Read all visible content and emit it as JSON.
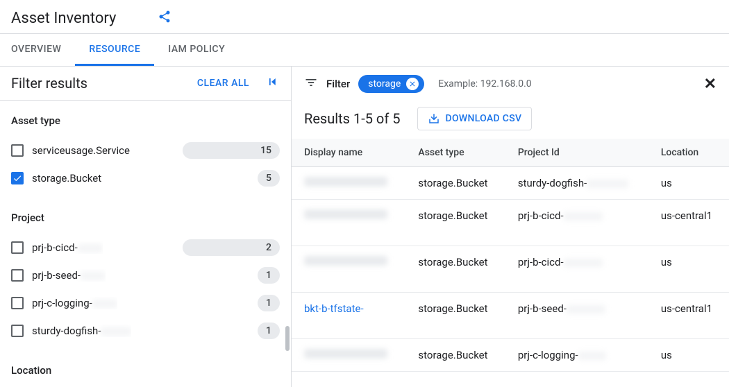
{
  "header": {
    "title": "Asset Inventory"
  },
  "tabs": {
    "overview": "OVERVIEW",
    "resource": "RESOURCE",
    "iam": "IAM POLICY",
    "active": "resource"
  },
  "sidebar": {
    "title": "Filter results",
    "clear_all": "CLEAR ALL",
    "sections": {
      "asset_type": {
        "heading": "Asset type",
        "items": [
          {
            "label": "serviceusage.Service",
            "count": "15",
            "checked": false,
            "wide": true
          },
          {
            "label": "storage.Bucket",
            "count": "5",
            "checked": true,
            "wide": false
          }
        ]
      },
      "project": {
        "heading": "Project",
        "items": [
          {
            "label": "prj-b-cicd-",
            "count": "2",
            "checked": false,
            "wide": true,
            "blur_suffix_width": 36
          },
          {
            "label": "prj-b-seed-",
            "count": "1",
            "checked": false,
            "wide": false,
            "blur_suffix_width": 36
          },
          {
            "label": "prj-c-logging-",
            "count": "1",
            "checked": false,
            "wide": false,
            "blur_suffix_width": 36
          },
          {
            "label": "sturdy-dogfish-",
            "count": "1",
            "checked": false,
            "wide": false,
            "blur_suffix_width": 44
          }
        ]
      },
      "location": {
        "heading": "Location"
      }
    }
  },
  "main": {
    "filter_label": "Filter",
    "chip": "storage",
    "hint": "Example: 192.168.0.0",
    "results_text": "Results 1-5 of 5",
    "download": "DOWNLOAD CSV",
    "columns": {
      "display_name": "Display name",
      "asset_type": "Asset type",
      "project_id": "Project Id",
      "location": "Location"
    },
    "rows": [
      {
        "name_visible": "",
        "name_blurred": true,
        "asset_type": "storage.Bucket",
        "project_prefix": "sturdy-dogfish-",
        "project_blur_w": 60,
        "location": "us",
        "tall": false
      },
      {
        "name_visible": "",
        "name_blurred": true,
        "asset_type": "storage.Bucket",
        "project_prefix": "prj-b-cicd-",
        "project_blur_w": 56,
        "location": "us-central1",
        "tall": true
      },
      {
        "name_visible": "",
        "name_blurred": true,
        "asset_type": "storage.Bucket",
        "project_prefix": "prj-b-cicd-",
        "project_blur_w": 56,
        "location": "us",
        "tall": true
      },
      {
        "name_visible": "bkt-b-tfstate-",
        "name_blurred": false,
        "asset_type": "storage.Bucket",
        "project_prefix": "prj-b-seed-",
        "project_blur_w": 56,
        "location": "us-central1",
        "tall": true
      },
      {
        "name_visible": "",
        "name_blurred": true,
        "asset_type": "storage.Bucket",
        "project_prefix": "prj-c-logging-",
        "project_blur_w": 40,
        "location": "us",
        "tall": false
      }
    ]
  },
  "colors": {
    "accent": "#1a73e8",
    "border": "#dadce0",
    "text_secondary": "#5f6368",
    "badge_bg": "#e8eaed"
  }
}
